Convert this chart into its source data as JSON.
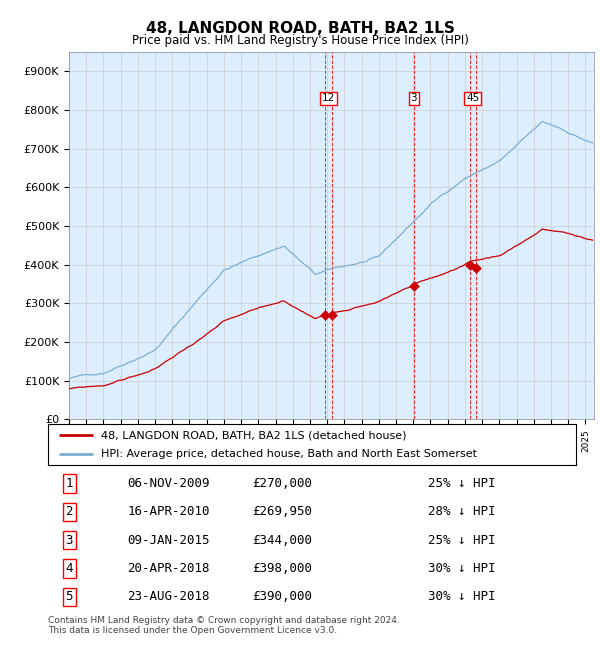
{
  "title": "48, LANGDON ROAD, BATH, BA2 1LS",
  "subtitle": "Price paid vs. HM Land Registry's House Price Index (HPI)",
  "ylabel_ticks": [
    "£0",
    "£100K",
    "£200K",
    "£300K",
    "£400K",
    "£500K",
    "£600K",
    "£700K",
    "£800K",
    "£900K"
  ],
  "ytick_values": [
    0,
    100000,
    200000,
    300000,
    400000,
    500000,
    600000,
    700000,
    800000,
    900000
  ],
  "ylim": [
    0,
    950000
  ],
  "hpi_color": "#7bafd4",
  "price_color": "#cc0000",
  "background_color": "#ddeeff",
  "plot_bg": "#ddeeff",
  "legend_line1": "48, LANGDON ROAD, BATH, BA2 1LS (detached house)",
  "legend_line2": "HPI: Average price, detached house, Bath and North East Somerset",
  "transactions": [
    {
      "num": 1,
      "date": "06-NOV-2009",
      "price": "£270,000",
      "pct": "25% ↓ HPI",
      "x_approx": 2009.85,
      "y": 270000
    },
    {
      "num": 2,
      "date": "16-APR-2010",
      "price": "£269,950",
      "pct": "28% ↓ HPI",
      "x_approx": 2010.29,
      "y": 269950
    },
    {
      "num": 3,
      "date": "09-JAN-2015",
      "price": "£344,000",
      "pct": "25% ↓ HPI",
      "x_approx": 2015.03,
      "y": 344000
    },
    {
      "num": 4,
      "date": "20-APR-2018",
      "price": "£398,000",
      "pct": "30% ↓ HPI",
      "x_approx": 2018.3,
      "y": 398000
    },
    {
      "num": 5,
      "date": "23-AUG-2018",
      "price": "£390,000",
      "pct": "30% ↓ HPI",
      "x_approx": 2018.64,
      "y": 390000
    }
  ],
  "box_groups": [
    {
      "label": "12",
      "x": 2010.07,
      "lines": [
        2009.85,
        2010.29
      ]
    },
    {
      "label": "3",
      "x": 2015.03,
      "lines": [
        2015.03
      ]
    },
    {
      "label": "45",
      "x": 2018.47,
      "lines": [
        2018.3,
        2018.64
      ]
    }
  ],
  "footer": "Contains HM Land Registry data © Crown copyright and database right 2024.\nThis data is licensed under the Open Government Licence v3.0.",
  "xmin": 1995.0,
  "xmax": 2025.5
}
